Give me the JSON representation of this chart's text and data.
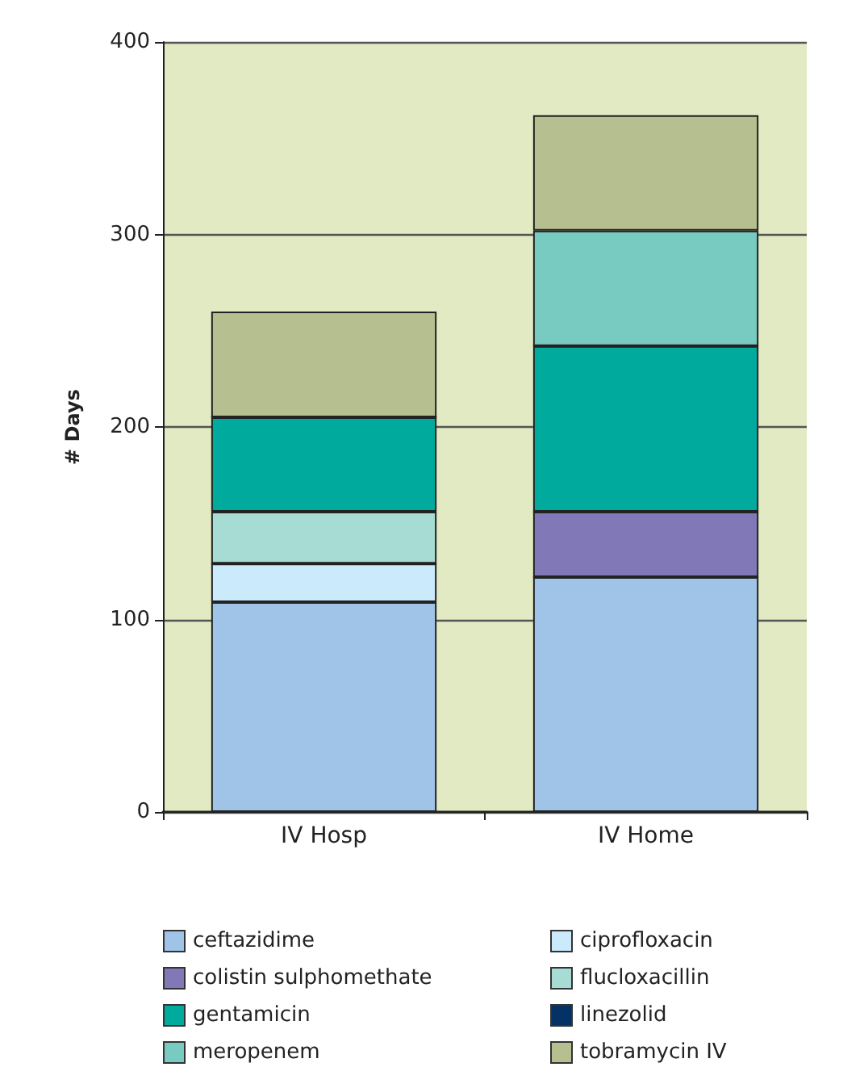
{
  "chart_data": {
    "type": "bar",
    "stacked": true,
    "ylabel": "# Days",
    "categories": [
      "IV Hosp",
      "IV Home"
    ],
    "series": [
      {
        "name": "ceftazidime",
        "color": "#a0c4e8",
        "values": [
          109,
          122
        ]
      },
      {
        "name": "ciprofloxacin",
        "color": "#cbeafb",
        "values": [
          20,
          0
        ]
      },
      {
        "name": "colistin sulphomethate",
        "color": "#8178b8",
        "values": [
          0,
          34
        ]
      },
      {
        "name": "flucloxacillin",
        "color": "#a6dcd4",
        "values": [
          27,
          0
        ]
      },
      {
        "name": "gentamicin",
        "color": "#00aa9c",
        "values": [
          49,
          86
        ]
      },
      {
        "name": "linezolid",
        "color": "#043266",
        "values": [
          0,
          0
        ]
      },
      {
        "name": "meropenem",
        "color": "#77cbc0",
        "values": [
          0,
          60
        ]
      },
      {
        "name": "tobramycin IV",
        "color": "#b5bf8f",
        "values": [
          55,
          60
        ]
      }
    ],
    "ylim": [
      0,
      400
    ],
    "yticks": [
      0,
      100,
      200,
      300,
      400
    ],
    "grid": "y",
    "legend": "bottom"
  }
}
